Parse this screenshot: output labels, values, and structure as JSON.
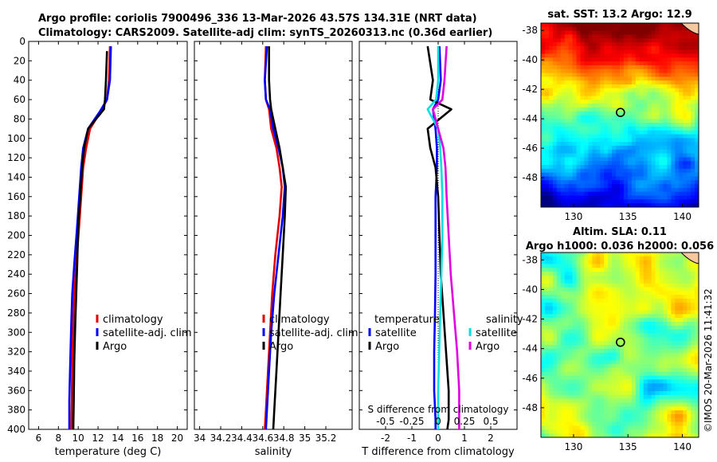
{
  "header": {
    "title_line1": "Argo profile: coriolis 7900496_336 13-Mar-2026 43.57S 134.31E (NRT data)",
    "title_line2": "Climatology: CARS2009. Satellite-adj clim: synTS_20260313.nc (0.36d earlier)"
  },
  "watermark": "©IMOS 20-Mar-2026 11:41:32",
  "colors": {
    "climatology": "#e00000",
    "satellite": "#0000ff",
    "argo": "#000000",
    "sal_satellite": "#00e0e0",
    "sal_argo": "#e000e0"
  },
  "chart_data": [
    {
      "type": "line",
      "name": "temperature-profile",
      "xlabel": "temperature (deg C)",
      "ylabel": "",
      "xlim": [
        5,
        21
      ],
      "ylim": [
        400,
        0
      ],
      "xticks": [
        "6",
        "8",
        "10",
        "12",
        "14",
        "16",
        "18",
        "20"
      ],
      "xtick_values": [
        6,
        8,
        10,
        12,
        14,
        16,
        18,
        20
      ],
      "yticks": [
        "0",
        "20",
        "40",
        "60",
        "80",
        "100",
        "120",
        "140",
        "160",
        "180",
        "200",
        "220",
        "240",
        "260",
        "280",
        "300",
        "320",
        "340",
        "360",
        "380",
        "400"
      ],
      "ytick_values": [
        0,
        20,
        40,
        60,
        80,
        100,
        120,
        140,
        160,
        180,
        200,
        220,
        240,
        260,
        280,
        300,
        320,
        340,
        360,
        380,
        400
      ],
      "legend": [
        "climatology",
        "satellite-adj. clim",
        "Argo"
      ],
      "series": [
        {
          "name": "climatology",
          "color": "#e00000",
          "x": [
            13.2,
            13.1,
            12.9,
            12.4,
            11.2,
            10.8,
            10.5,
            10.3,
            10.1,
            9.8,
            9.6,
            9.5,
            9.4,
            9.35,
            9.3
          ],
          "y": [
            5,
            40,
            60,
            70,
            90,
            110,
            130,
            160,
            190,
            230,
            260,
            290,
            330,
            370,
            400
          ]
        },
        {
          "name": "satellite-adj. clim",
          "color": "#0000ff",
          "x": [
            13.3,
            13.2,
            12.9,
            12.2,
            11.0,
            10.5,
            10.3,
            10.1,
            9.9,
            9.6,
            9.4,
            9.3,
            9.2,
            9.1,
            9.1
          ],
          "y": [
            5,
            40,
            60,
            72,
            90,
            110,
            130,
            160,
            190,
            230,
            260,
            290,
            330,
            370,
            400
          ]
        },
        {
          "name": "Argo",
          "color": "#000000",
          "x": [
            12.9,
            12.8,
            12.7,
            12.6,
            11.0,
            10.6,
            10.4,
            10.2,
            10.0,
            9.9,
            9.8,
            9.7,
            9.6,
            9.55,
            9.5
          ],
          "y": [
            10,
            40,
            60,
            70,
            90,
            110,
            130,
            160,
            190,
            230,
            260,
            290,
            330,
            370,
            400
          ]
        }
      ]
    },
    {
      "type": "line",
      "name": "salinity-profile",
      "xlabel": "salinity",
      "xlim": [
        33.95,
        35.45
      ],
      "ylim": [
        400,
        0
      ],
      "xticks": [
        "34",
        "34.2",
        "34.4",
        "34.6",
        "34.8",
        "35",
        "35.2"
      ],
      "xtick_values": [
        34.0,
        34.2,
        34.4,
        34.6,
        34.8,
        35.0,
        35.2
      ],
      "legend": [
        "climatology",
        "satellite-adj. clim",
        "Argo"
      ],
      "series": [
        {
          "name": "climatology",
          "color": "#e00000",
          "x": [
            34.63,
            34.62,
            34.63,
            34.66,
            34.68,
            34.73,
            34.76,
            34.78,
            34.76,
            34.72,
            34.69,
            34.67,
            34.65,
            34.63,
            34.62
          ],
          "y": [
            5,
            40,
            60,
            70,
            90,
            110,
            130,
            150,
            180,
            220,
            260,
            300,
            340,
            380,
            400
          ]
        },
        {
          "name": "satellite-adj. clim",
          "color": "#0000ff",
          "x": [
            34.64,
            34.62,
            34.63,
            34.67,
            34.7,
            34.75,
            34.79,
            34.81,
            34.79,
            34.75,
            34.71,
            34.68,
            34.66,
            34.64,
            34.63
          ],
          "y": [
            5,
            40,
            60,
            70,
            90,
            110,
            130,
            150,
            180,
            220,
            260,
            300,
            340,
            380,
            400
          ]
        },
        {
          "name": "Argo",
          "color": "#000000",
          "x": [
            34.66,
            34.66,
            34.67,
            34.68,
            34.72,
            34.76,
            34.79,
            34.82,
            34.81,
            34.79,
            34.77,
            34.75,
            34.73,
            34.71,
            34.7
          ],
          "y": [
            5,
            40,
            60,
            70,
            90,
            110,
            130,
            150,
            180,
            220,
            260,
            300,
            340,
            380,
            400
          ]
        }
      ]
    },
    {
      "type": "line",
      "name": "difference-profile",
      "xlabel": "T difference from climatology",
      "xlabel_top": "S difference from climatology",
      "xlim": [
        -3,
        3
      ],
      "ylim": [
        400,
        0
      ],
      "xticks": [
        "-2",
        "-1",
        "0",
        "1",
        "2"
      ],
      "xtick_values": [
        -2,
        -1,
        0,
        1,
        2
      ],
      "xticks_top": [
        "-0.5",
        "-0.25",
        "0",
        "0.25",
        "0.5"
      ],
      "xtick_values_top": [
        -0.5,
        -0.25,
        0,
        0.25,
        0.5
      ],
      "legend_left_title": "temperature",
      "legend_right_title": "salinity",
      "legend_left": [
        "satellite",
        "Argo"
      ],
      "legend_right": [
        "satellite",
        "Argo"
      ],
      "series": [
        {
          "name": "T satellite",
          "color": "#0000ff",
          "x": [
            0.05,
            0.1,
            0.0,
            -0.2,
            -0.1,
            -0.05,
            -0.05,
            -0.1,
            -0.1,
            -0.1,
            -0.12,
            -0.15,
            -0.15,
            -0.1,
            -0.1
          ],
          "y": [
            5,
            40,
            60,
            70,
            90,
            110,
            130,
            160,
            200,
            240,
            280,
            320,
            360,
            390,
            400
          ]
        },
        {
          "name": "T Argo",
          "color": "#000000",
          "x": [
            -0.4,
            -0.2,
            -0.3,
            0.5,
            -0.4,
            -0.3,
            -0.1,
            0.0,
            0.05,
            0.1,
            0.2,
            0.3,
            0.4,
            0.4,
            0.35
          ],
          "y": [
            5,
            40,
            60,
            70,
            90,
            110,
            130,
            160,
            200,
            240,
            280,
            320,
            360,
            390,
            400
          ]
        },
        {
          "name": "S satellite",
          "color": "#00e0e0",
          "x": [
            0.0,
            0.0,
            -0.02,
            -0.1,
            0.0,
            0.02,
            0.03,
            0.04,
            0.04,
            0.03,
            0.02,
            0.01,
            0.0,
            0.0,
            0.0
          ],
          "y": [
            5,
            40,
            60,
            70,
            90,
            110,
            130,
            160,
            200,
            240,
            280,
            320,
            360,
            390,
            400
          ]
        },
        {
          "name": "S Argo",
          "color": "#e000e0",
          "x": [
            0.08,
            0.06,
            0.04,
            -0.05,
            0.0,
            0.05,
            0.07,
            0.08,
            0.1,
            0.12,
            0.15,
            0.18,
            0.2,
            0.2,
            0.2
          ],
          "y": [
            5,
            40,
            60,
            70,
            90,
            110,
            130,
            160,
            200,
            240,
            280,
            320,
            360,
            390,
            400
          ]
        }
      ]
    },
    {
      "type": "heatmap",
      "name": "sst-map",
      "title": "sat. SST: 13.2 Argo: 12.9",
      "xlim": [
        127,
        141.5
      ],
      "ylim": [
        -50,
        -37.5
      ],
      "xticks": [
        "130",
        "135",
        "140"
      ],
      "xtick_values": [
        130,
        135,
        140
      ],
      "yticks": [
        "-38",
        "-40",
        "-42",
        "-44",
        "-46",
        "-48"
      ],
      "ytick_values": [
        -38,
        -40,
        -42,
        -44,
        -46,
        -48
      ],
      "marker": {
        "lon": 134.31,
        "lat": -43.57
      }
    },
    {
      "type": "heatmap",
      "name": "sla-map",
      "title": "Altim. SLA: 0.11",
      "subtitle": "Argo h1000: 0.036 h2000: 0.056",
      "xlim": [
        127,
        141.5
      ],
      "ylim": [
        -50,
        -37.5
      ],
      "xticks": [
        "130",
        "135",
        "140"
      ],
      "xtick_values": [
        130,
        135,
        140
      ],
      "yticks": [
        "-38",
        "-40",
        "-42",
        "-44",
        "-46",
        "-48"
      ],
      "ytick_values": [
        -38,
        -40,
        -42,
        -44,
        -46,
        -48
      ],
      "marker": {
        "lon": 134.31,
        "lat": -43.57
      }
    }
  ]
}
